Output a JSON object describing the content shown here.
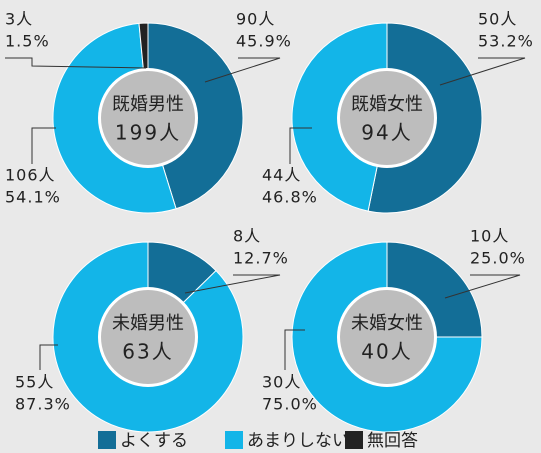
{
  "chart_data": [
    {
      "type": "donut",
      "title": "既婚男性",
      "total": 199,
      "total_label": "199人",
      "values": [
        90,
        106,
        3
      ],
      "value_labels": [
        "90人",
        "106人",
        "3人"
      ],
      "percentages": [
        45.9,
        54.1,
        1.5
      ],
      "percentage_labels": [
        "45.9%",
        "54.1%",
        "1.5%"
      ],
      "colors": [
        "#136e97",
        "#13b5e8",
        "#222222"
      ]
    },
    {
      "type": "donut",
      "title": "既婚女性",
      "total": 94,
      "total_label": "94人",
      "values": [
        50,
        44
      ],
      "value_labels": [
        "50人",
        "44人"
      ],
      "percentages": [
        53.2,
        46.8
      ],
      "percentage_labels": [
        "53.2%",
        "46.8%"
      ],
      "colors": [
        "#136e97",
        "#13b5e8"
      ]
    },
    {
      "type": "donut",
      "title": "未婚男性",
      "total": 63,
      "total_label": "63人",
      "values": [
        8,
        55
      ],
      "value_labels": [
        "8人",
        "55人"
      ],
      "percentages": [
        12.7,
        87.3
      ],
      "percentage_labels": [
        "12.7%",
        "87.3%"
      ],
      "colors": [
        "#136e97",
        "#13b5e8"
      ]
    },
    {
      "type": "donut",
      "title": "未婚女性",
      "total": 40,
      "total_label": "40人",
      "values": [
        10,
        30
      ],
      "value_labels": [
        "10人",
        "30人"
      ],
      "percentages": [
        25.0,
        75.0
      ],
      "percentage_labels": [
        "25.0%",
        "75.0%"
      ],
      "colors": [
        "#136e97",
        "#13b5e8"
      ]
    }
  ],
  "legend": [
    {
      "name": "よくする",
      "color": "#136e97"
    },
    {
      "name": "あまりしない",
      "color": "#13b5e8"
    },
    {
      "name": "無回答",
      "color": "#222222"
    }
  ]
}
